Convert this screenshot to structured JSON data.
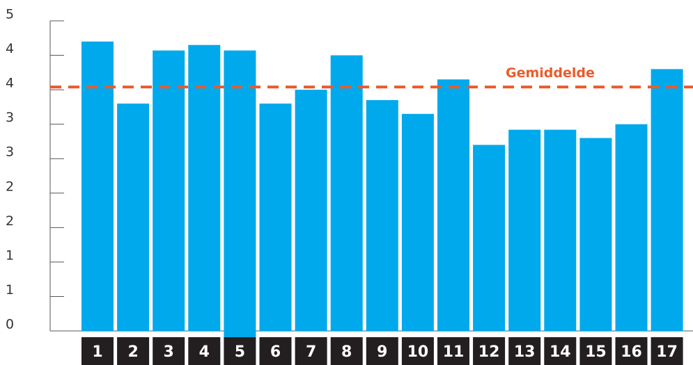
{
  "chart_data": {
    "type": "bar",
    "categories": [
      "1",
      "2",
      "3",
      "4",
      "5",
      "6",
      "7",
      "8",
      "9",
      "10",
      "11",
      "12",
      "13",
      "14",
      "15",
      "16",
      "17"
    ],
    "values": [
      4.2,
      3.3,
      4.07,
      4.15,
      4.07,
      3.3,
      3.5,
      4.0,
      3.35,
      3.15,
      3.65,
      2.7,
      2.92,
      2.92,
      2.8,
      3.0,
      3.8
    ],
    "ytick_labels": [
      "0",
      "1",
      "1",
      "2",
      "2",
      "3",
      "3",
      "4",
      "4",
      "5"
    ],
    "ylim": [
      0,
      4.5
    ],
    "grid": false,
    "reference_line": {
      "label": "Gemiddelde",
      "value": 3.54,
      "style": "dashed"
    },
    "colors": {
      "bar": "#00a9ec",
      "mean_line": "#ea5b2a",
      "category_box": "#231f20",
      "axis": "#555555"
    }
  }
}
